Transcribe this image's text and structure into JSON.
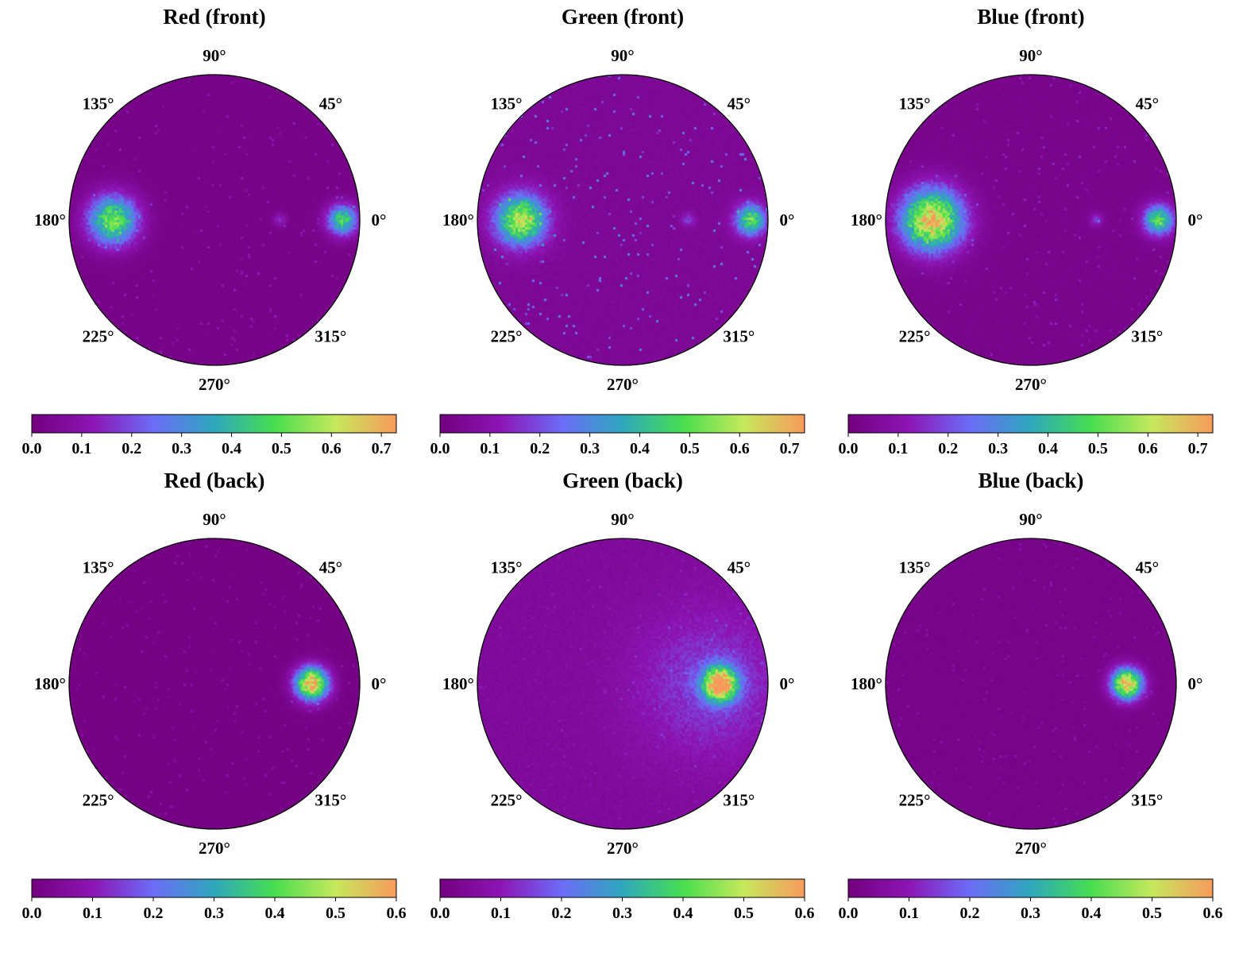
{
  "figure": {
    "colormap": [
      "#73007f",
      "#8d15b5",
      "#6c6cf8",
      "#2ea7bd",
      "#48de4f",
      "#c6e85c",
      "#f89a5c"
    ],
    "background_color": "#73007f"
  },
  "chart_data": [
    {
      "type": "heatmap",
      "projection": "polar",
      "title": "Red (front)",
      "angle_ticks": [
        "0°",
        "45°",
        "90°",
        "135°",
        "180°",
        "225°",
        "270°",
        "315°"
      ],
      "colorbar": {
        "vmin": 0.0,
        "vmax": 0.73,
        "ticks": [
          "0.0",
          "0.1",
          "0.2",
          "0.3",
          "0.4",
          "0.5",
          "0.6",
          "0.7"
        ],
        "tick_values": [
          0,
          0.1,
          0.2,
          0.3,
          0.4,
          0.5,
          0.6,
          0.7
        ]
      },
      "hotspots": [
        {
          "angle_deg": 180,
          "radius": 0.7,
          "peak": 0.5,
          "width": 0.18
        },
        {
          "angle_deg": 0,
          "radius": 0.88,
          "peak": 0.45,
          "width": 0.11
        },
        {
          "angle_deg": 0,
          "radius": 0.45,
          "peak": 0.12,
          "width": 0.05
        }
      ],
      "background_level": 0.02,
      "speckle_level": 0.12
    },
    {
      "type": "heatmap",
      "projection": "polar",
      "title": "Green (front)",
      "angle_ticks": [
        "0°",
        "45°",
        "90°",
        "135°",
        "180°",
        "225°",
        "270°",
        "315°"
      ],
      "colorbar": {
        "vmin": 0.0,
        "vmax": 0.73,
        "ticks": [
          "0.0",
          "0.1",
          "0.2",
          "0.3",
          "0.4",
          "0.5",
          "0.6",
          "0.7"
        ],
        "tick_values": [
          0,
          0.1,
          0.2,
          0.3,
          0.4,
          0.5,
          0.6,
          0.7
        ]
      },
      "hotspots": [
        {
          "angle_deg": 180,
          "radius": 0.7,
          "peak": 0.56,
          "width": 0.18
        },
        {
          "angle_deg": 0,
          "radius": 0.88,
          "peak": 0.45,
          "width": 0.11
        },
        {
          "angle_deg": 0,
          "radius": 0.45,
          "peak": 0.13,
          "width": 0.05
        }
      ],
      "background_level": 0.05,
      "speckle_level": 0.25
    },
    {
      "type": "heatmap",
      "projection": "polar",
      "title": "Blue (front)",
      "angle_ticks": [
        "0°",
        "45°",
        "90°",
        "135°",
        "180°",
        "225°",
        "270°",
        "315°"
      ],
      "colorbar": {
        "vmin": 0.0,
        "vmax": 0.73,
        "ticks": [
          "0.0",
          "0.1",
          "0.2",
          "0.3",
          "0.4",
          "0.5",
          "0.6",
          "0.7"
        ],
        "tick_values": [
          0,
          0.1,
          0.2,
          0.3,
          0.4,
          0.5,
          0.6,
          0.7
        ]
      },
      "hotspots": [
        {
          "angle_deg": 180,
          "radius": 0.68,
          "peak": 0.66,
          "width": 0.22
        },
        {
          "angle_deg": 0,
          "radius": 0.88,
          "peak": 0.45,
          "width": 0.11
        },
        {
          "angle_deg": 0,
          "radius": 0.45,
          "peak": 0.13,
          "width": 0.05
        }
      ],
      "background_level": 0.03,
      "speckle_level": 0.12
    },
    {
      "type": "heatmap",
      "projection": "polar",
      "title": "Red (back)",
      "angle_ticks": [
        "0°",
        "45°",
        "90°",
        "135°",
        "180°",
        "225°",
        "270°",
        "315°"
      ],
      "colorbar": {
        "vmin": 0.0,
        "vmax": 0.6,
        "ticks": [
          "0.0",
          "0.1",
          "0.2",
          "0.3",
          "0.4",
          "0.5",
          "0.6"
        ],
        "tick_values": [
          0,
          0.1,
          0.2,
          0.3,
          0.4,
          0.5,
          0.6
        ]
      },
      "hotspots": [
        {
          "angle_deg": 0,
          "radius": 0.67,
          "peak": 0.58,
          "width": 0.12
        }
      ],
      "background_level": 0.01,
      "speckle_level": 0.08
    },
    {
      "type": "heatmap",
      "projection": "polar",
      "title": "Green (back)",
      "angle_ticks": [
        "0°",
        "45°",
        "90°",
        "135°",
        "180°",
        "225°",
        "270°",
        "315°"
      ],
      "colorbar": {
        "vmin": 0.0,
        "vmax": 0.6,
        "ticks": [
          "0.0",
          "0.1",
          "0.2",
          "0.3",
          "0.4",
          "0.5",
          "0.6"
        ],
        "tick_values": [
          0,
          0.1,
          0.2,
          0.3,
          0.4,
          0.5,
          0.6
        ]
      },
      "hotspots": [
        {
          "angle_deg": 0,
          "radius": 0.67,
          "peak": 0.56,
          "width": 0.12
        },
        {
          "angle_deg": 0,
          "radius": 0.6,
          "peak": 0.1,
          "width": 0.55
        }
      ],
      "background_level": 0.05,
      "speckle_level": 0.06
    },
    {
      "type": "heatmap",
      "projection": "polar",
      "title": "Blue (back)",
      "angle_ticks": [
        "0°",
        "45°",
        "90°",
        "135°",
        "180°",
        "225°",
        "270°",
        "315°"
      ],
      "colorbar": {
        "vmin": 0.0,
        "vmax": 0.6,
        "ticks": [
          "0.0",
          "0.1",
          "0.2",
          "0.3",
          "0.4",
          "0.5",
          "0.6"
        ],
        "tick_values": [
          0,
          0.1,
          0.2,
          0.3,
          0.4,
          0.5,
          0.6
        ]
      },
      "hotspots": [
        {
          "angle_deg": 0,
          "radius": 0.66,
          "peak": 0.58,
          "width": 0.11
        }
      ],
      "background_level": 0.02,
      "speckle_level": 0.07
    }
  ]
}
